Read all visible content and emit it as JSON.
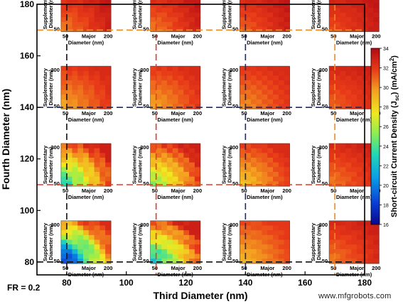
{
  "chart_data": {
    "type": "heatmap",
    "xlabel": "Third Diameter (nm)",
    "ylabel": "Fourth Diameter (nm)",
    "xlim": [
      70,
      180
    ],
    "ylim": [
      75,
      180
    ],
    "x_ticks": [
      "80",
      "100",
      "120",
      "140",
      "160",
      "180"
    ],
    "y_ticks": [
      "80",
      "100",
      "120",
      "140",
      "160",
      "180"
    ],
    "inset_xlabel_line1": "Major",
    "inset_xlabel_line2": "Diameter (nm)",
    "inset_ylabel_line1": "Supplementary",
    "inset_ylabel_line2": "Diameter (nm)",
    "inset_ticks_min": "50",
    "inset_ticks_max": "200",
    "colorbar": {
      "label": "Short-circuit Current Density (J",
      "label_sub": "sc",
      "label_unit": ") (mA/cm",
      "label_sup": "2",
      "label_end": ")",
      "min": 16,
      "max": 34,
      "ticks": [
        "16",
        "18",
        "20",
        "22",
        "24",
        "26",
        "28",
        "30",
        "32",
        "34"
      ]
    },
    "third_diameter_values": [
      80,
      110,
      140,
      170
    ],
    "fourth_diameter_values": [
      170,
      140,
      110,
      80
    ],
    "line_colors": {
      "170": "#f08a24",
      "140": "#1a2a6c",
      "110": "#e03a2a",
      "80": "#111111"
    },
    "inset_grid": {
      "rows_fourth": [
        170,
        140,
        110,
        80
      ],
      "cols_third": [
        80,
        110,
        140,
        170
      ],
      "jsc_min": [
        [
          30.5,
          30.5,
          31.0,
          31.5
        ],
        [
          29.5,
          29.5,
          30.0,
          31.0
        ],
        [
          23.0,
          25.0,
          28.5,
          30.5
        ],
        [
          17.5,
          22.0,
          29.0,
          30.5
        ]
      ],
      "jsc_max": [
        [
          33.5,
          33.5,
          33.5,
          33.5
        ],
        [
          32.5,
          32.5,
          32.5,
          33.0
        ],
        [
          33.0,
          33.0,
          32.5,
          33.0
        ],
        [
          32.5,
          33.0,
          32.0,
          33.0
        ]
      ]
    },
    "grid": false
  },
  "caption": {
    "fr": "FR = 0.2",
    "watermark": "www.mfgrobots.com"
  },
  "colors": {
    "frame": "#000000",
    "colormap": [
      "#08088c",
      "#0a3cd6",
      "#0aa0e6",
      "#22d8b4",
      "#90ee50",
      "#f0e820",
      "#f4a020",
      "#e83a18",
      "#b40a14"
    ]
  }
}
